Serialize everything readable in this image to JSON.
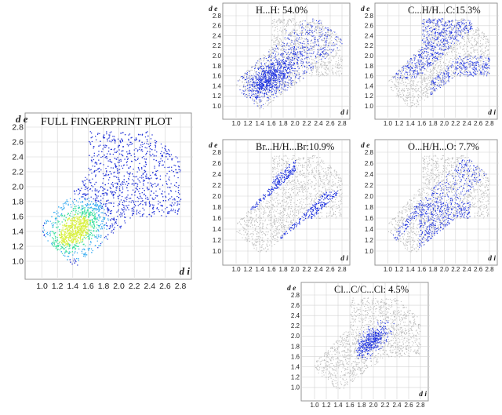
{
  "figure": {
    "axis_x_label": "d i",
    "axis_y_label": "d e"
  },
  "chart_data": [
    {
      "type": "scatter",
      "id": "full",
      "title": "FULL FINGERPRINT PLOT",
      "xlabel": "d i",
      "ylabel": "d e",
      "xlim": [
        0.8,
        2.8
      ],
      "ylim": [
        0.8,
        2.8
      ],
      "x_ticks": [
        "1.0",
        "1.2",
        "1.4",
        "1.6",
        "1.8",
        "2.0",
        "2.2",
        "2.4",
        "2.6",
        "2.8"
      ],
      "y_ticks": [
        "1.0",
        "1.2",
        "1.4",
        "1.6",
        "1.8",
        "2.0",
        "2.2",
        "2.4",
        "2.6",
        "2.8"
      ],
      "grid": true,
      "highlight": "full",
      "colormap": [
        "#1e2fd6",
        "#2fa8f0",
        "#3fe0a0",
        "#d8f040"
      ],
      "density_peak": {
        "di": 1.42,
        "de": 1.44
      },
      "highlight_color": "#1a2fe0",
      "background_color": "#bdbdbd"
    },
    {
      "type": "scatter",
      "id": "hh",
      "title": "H...H: 54.0%",
      "xlabel": "d i",
      "ylabel": "d e",
      "xlim": [
        0.8,
        2.8
      ],
      "ylim": [
        0.8,
        2.8
      ],
      "x_ticks": [
        "1.0",
        "1.2",
        "1.4",
        "1.6",
        "1.8",
        "2.0",
        "2.2",
        "2.4",
        "2.6",
        "2.8"
      ],
      "y_ticks": [
        "1.0",
        "1.2",
        "1.4",
        "1.6",
        "1.8",
        "2.0",
        "2.2",
        "2.4",
        "2.6",
        "2.8"
      ],
      "grid": true,
      "highlight": "hh",
      "contact": "H...H",
      "percent": 54.0,
      "highlight_color": "#1a2fe0",
      "background_color": "#bdbdbd"
    },
    {
      "type": "scatter",
      "id": "ch",
      "title": "C...H/H...C:15.3%",
      "xlabel": "d i",
      "ylabel": "d e",
      "xlim": [
        0.8,
        2.8
      ],
      "ylim": [
        0.8,
        2.8
      ],
      "x_ticks": [
        "1.0",
        "1.2",
        "1.4",
        "1.6",
        "1.8",
        "2.0",
        "2.2",
        "2.4",
        "2.6",
        "2.8"
      ],
      "y_ticks": [
        "1.0",
        "1.2",
        "1.4",
        "1.6",
        "1.8",
        "2.0",
        "2.2",
        "2.4",
        "2.6",
        "2.8"
      ],
      "grid": true,
      "highlight": "ch",
      "contact": "C...H/H...C",
      "percent": 15.3,
      "highlight_color": "#1a2fe0",
      "background_color": "#bdbdbd"
    },
    {
      "type": "scatter",
      "id": "brh",
      "title": "Br...H/H...Br:10.9%",
      "xlabel": "d i",
      "ylabel": "d e",
      "xlim": [
        0.8,
        2.8
      ],
      "ylim": [
        0.8,
        2.8
      ],
      "x_ticks": [
        "1.0",
        "1.2",
        "1.4",
        "1.6",
        "1.8",
        "2.0",
        "2.2",
        "2.4",
        "2.6",
        "2.8"
      ],
      "y_ticks": [
        "1.0",
        "1.2",
        "1.4",
        "1.6",
        "1.8",
        "2.0",
        "2.2",
        "2.4",
        "2.6",
        "2.8"
      ],
      "grid": true,
      "highlight": "brh",
      "contact": "Br...H/H...Br",
      "percent": 10.9,
      "highlight_color": "#1a2fe0",
      "background_color": "#bdbdbd"
    },
    {
      "type": "scatter",
      "id": "oh",
      "title": "O...H/H...O: 7.7%",
      "xlabel": "d i",
      "ylabel": "d e",
      "xlim": [
        0.8,
        2.8
      ],
      "ylim": [
        0.8,
        2.8
      ],
      "x_ticks": [
        "1.0",
        "1.2",
        "1.4",
        "1.6",
        "1.8",
        "2.0",
        "2.2",
        "2.4",
        "2.6",
        "2.8"
      ],
      "y_ticks": [
        "1.0",
        "1.2",
        "1.4",
        "1.6",
        "1.8",
        "2.0",
        "2.2",
        "2.4",
        "2.6",
        "2.8"
      ],
      "grid": true,
      "highlight": "oh",
      "contact": "O...H/H...O",
      "percent": 7.7,
      "highlight_color": "#1a2fe0",
      "background_color": "#bdbdbd"
    },
    {
      "type": "scatter",
      "id": "clc",
      "title": "Cl...C/C...Cl: 4.5%",
      "xlabel": "d i",
      "ylabel": "d e",
      "xlim": [
        0.8,
        2.8
      ],
      "ylim": [
        0.8,
        2.8
      ],
      "x_ticks": [
        "1.0",
        "1.2",
        "1.4",
        "1.6",
        "1.8",
        "2.0",
        "2.2",
        "2.4",
        "2.6",
        "2.8"
      ],
      "y_ticks": [
        "1.0",
        "1.2",
        "1.4",
        "1.6",
        "1.8",
        "2.0",
        "2.2",
        "2.4",
        "2.6",
        "2.8"
      ],
      "grid": true,
      "highlight": "clc",
      "contact": "Cl...C/C...Cl",
      "percent": 4.5,
      "highlight_color": "#1a2fe0",
      "background_color": "#bdbdbd"
    }
  ]
}
